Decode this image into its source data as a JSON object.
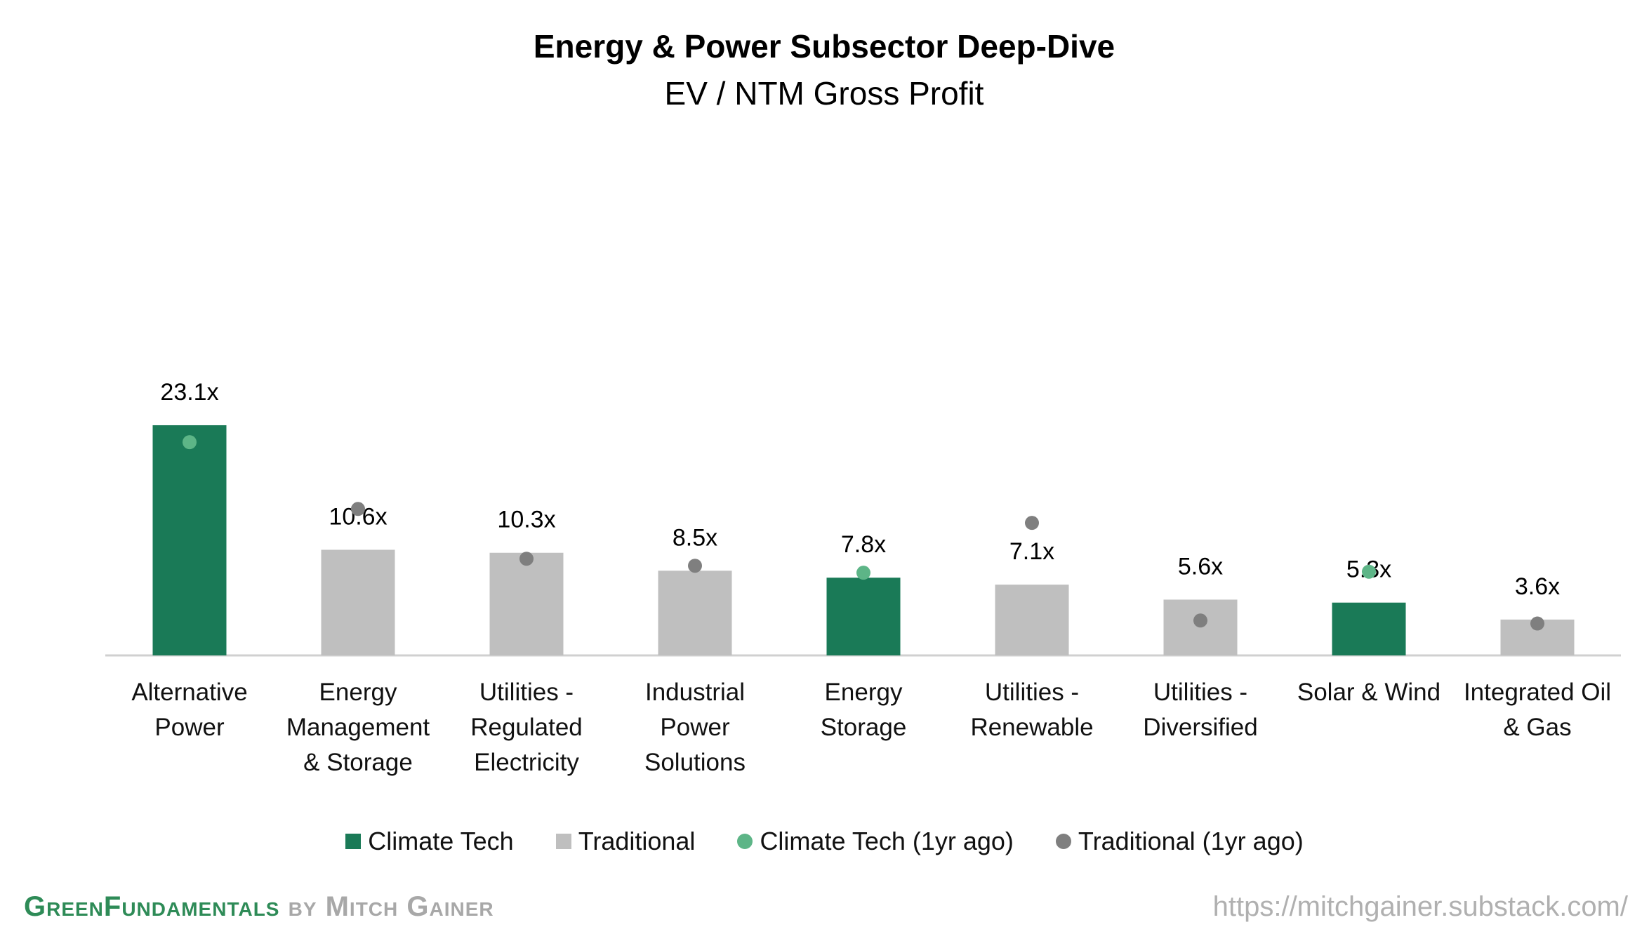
{
  "chart_data": {
    "type": "bar",
    "title": "Energy & Power Subsector Deep-Dive",
    "subtitle": "EV / NTM Gross Profit",
    "categories": [
      "Alternative Power",
      "Energy Management & Storage",
      "Utilities - Regulated Electricity",
      "Industrial Power Solutions",
      "Energy Storage",
      "Utilities - Renewable",
      "Utilities - Diversified",
      "Solar & Wind",
      "Integrated Oil & Gas"
    ],
    "series": [
      {
        "name": "Climate Tech",
        "color": "#1a7a57",
        "mark": "bar",
        "values": [
          23.1,
          null,
          null,
          null,
          7.8,
          null,
          null,
          5.3,
          null
        ],
        "value_labels": [
          "23.1x",
          null,
          null,
          null,
          "7.8x",
          null,
          null,
          "5.3x",
          null
        ]
      },
      {
        "name": "Traditional",
        "color": "#bfbfbf",
        "mark": "bar",
        "values": [
          null,
          10.6,
          10.3,
          8.5,
          null,
          7.1,
          5.6,
          null,
          3.6
        ],
        "value_labels": [
          null,
          "10.6x",
          "10.3x",
          "8.5x",
          null,
          "7.1x",
          "5.6x",
          null,
          "3.6x"
        ]
      },
      {
        "name": "Climate Tech (1yr ago)",
        "color": "#5db587",
        "mark": "dot",
        "values": [
          21.4,
          null,
          null,
          null,
          8.3,
          null,
          null,
          8.4,
          null
        ]
      },
      {
        "name": "Traditional (1yr ago)",
        "color": "#7f7f7f",
        "mark": "dot",
        "values": [
          null,
          14.7,
          9.7,
          9.0,
          null,
          13.3,
          3.5,
          null,
          3.2
        ]
      }
    ],
    "legend": "bottom"
  },
  "footer": {
    "brand_green": "GreenFundamentals",
    "brand_gray": "by Mitch Gainer",
    "url": "https://mitchgainer.substack.com/"
  }
}
